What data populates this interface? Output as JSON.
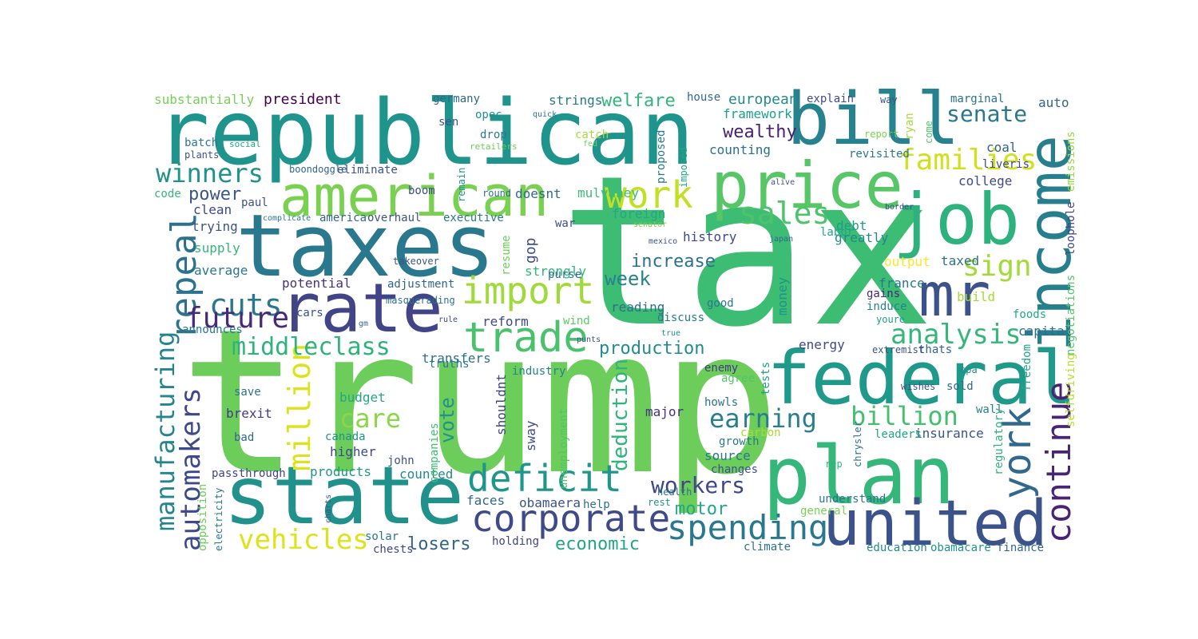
{
  "word_cloud": {
    "words": [
      {
        "text": "tax",
        "color": "#3dbc74"
      },
      {
        "text": "trump",
        "color": "#6ccd5a"
      },
      {
        "text": "republican",
        "color": "#1f948c"
      },
      {
        "text": "taxes",
        "color": "#2a788e"
      },
      {
        "text": "state",
        "color": "#21918c"
      },
      {
        "text": "plan",
        "color": "#35b779"
      },
      {
        "text": "federal",
        "color": "#1f9a8a"
      },
      {
        "text": "bill",
        "color": "#26828e"
      },
      {
        "text": "price",
        "color": "#56c667"
      },
      {
        "text": "job",
        "color": "#2db27d"
      },
      {
        "text": "income",
        "color": "#277f8e"
      },
      {
        "text": "rate",
        "color": "#414487"
      },
      {
        "text": "mr",
        "color": "#3b528b"
      },
      {
        "text": "united",
        "color": "#3b528b"
      },
      {
        "text": "american",
        "color": "#7ad151"
      },
      {
        "text": "trade",
        "color": "#4ac16d"
      },
      {
        "text": "import",
        "color": "#9fda3a"
      },
      {
        "text": "work",
        "color": "#c2df23"
      },
      {
        "text": "corporate",
        "color": "#3e4a89"
      },
      {
        "text": "deficit",
        "color": "#1f968b"
      },
      {
        "text": "spending",
        "color": "#2a788e"
      },
      {
        "text": "york",
        "color": "#31688e"
      },
      {
        "text": "continue",
        "color": "#482475"
      },
      {
        "text": "repeal",
        "color": "#2c728e"
      },
      {
        "text": "cuts",
        "color": "#2a778e"
      },
      {
        "text": "future",
        "color": "#482878"
      },
      {
        "text": "million",
        "color": "#dde318"
      },
      {
        "text": "manufacturing",
        "color": "#25848e"
      },
      {
        "text": "automakers",
        "color": "#3e4989"
      },
      {
        "text": "middleclass",
        "color": "#2eb37c"
      },
      {
        "text": "analysis",
        "color": "#35b779"
      },
      {
        "text": "sales",
        "color": "#4ec36b"
      },
      {
        "text": "families",
        "color": "#d0e11c"
      },
      {
        "text": "sign",
        "color": "#a2da37"
      },
      {
        "text": "senate",
        "color": "#2a788e"
      },
      {
        "text": "winners",
        "color": "#20928c"
      },
      {
        "text": "earning",
        "color": "#277f8e"
      },
      {
        "text": "billion",
        "color": "#44bf70"
      },
      {
        "text": "vehicles",
        "color": "#dde318"
      },
      {
        "text": "workers",
        "color": "#3f4788"
      },
      {
        "text": "care",
        "color": "#8bd646"
      },
      {
        "text": "production",
        "color": "#228c8d"
      },
      {
        "text": "increase",
        "color": "#2c728e"
      },
      {
        "text": "week",
        "color": "#26828e"
      },
      {
        "text": "vote",
        "color": "#20928c"
      },
      {
        "text": "welfare",
        "color": "#32b67a"
      },
      {
        "text": "wealthy",
        "color": "#481f70"
      },
      {
        "text": "deduction",
        "color": "#2fb47c"
      },
      {
        "text": "motor",
        "color": "#22a785"
      },
      {
        "text": "economic",
        "color": "#22a785"
      },
      {
        "text": "losers",
        "color": "#33638d"
      },
      {
        "text": "power",
        "color": "#3a548c"
      },
      {
        "text": "president",
        "color": "#440154"
      },
      {
        "text": "substantially",
        "color": "#75d054"
      },
      {
        "text": "strings",
        "color": "#2a788e"
      },
      {
        "text": "european",
        "color": "#238a8d"
      },
      {
        "text": "framework",
        "color": "#1fa088"
      },
      {
        "text": "counting",
        "color": "#2c718e"
      },
      {
        "text": "explain",
        "color": "#3d4d8a"
      },
      {
        "text": "marginal",
        "color": "#2d708e"
      },
      {
        "text": "auto",
        "color": "#32658e"
      },
      {
        "text": "coal",
        "color": "#33638d"
      },
      {
        "text": "college",
        "color": "#3e4a89"
      },
      {
        "text": "taxed",
        "color": "#2d708e"
      },
      {
        "text": "output",
        "color": "#fde725"
      },
      {
        "text": "france",
        "color": "#2a788e"
      },
      {
        "text": "build",
        "color": "#a5db36"
      },
      {
        "text": "capital",
        "color": "#2e6d8e"
      },
      {
        "text": "energy",
        "color": "#3e4a89"
      },
      {
        "text": "money",
        "color": "#21918c"
      },
      {
        "text": "reading",
        "color": "#2e6f8e"
      },
      {
        "text": "history",
        "color": "#3f4889"
      },
      {
        "text": "foreign",
        "color": "#22a884"
      },
      {
        "text": "greatly",
        "color": "#25858e"
      },
      {
        "text": "debt",
        "color": "#1e9c89"
      },
      {
        "text": "transfers",
        "color": "#2c718e"
      },
      {
        "text": "reform",
        "color": "#3e4989"
      },
      {
        "text": "strongly",
        "color": "#31b57b"
      },
      {
        "text": "gop",
        "color": "#3e4a89"
      },
      {
        "text": "resume",
        "color": "#6ece58"
      },
      {
        "text": "doesnt",
        "color": "#30698e"
      },
      {
        "text": "mulvaney",
        "color": "#3dbc74"
      },
      {
        "text": "potential",
        "color": "#46327e"
      },
      {
        "text": "adjustment",
        "color": "#32658e"
      },
      {
        "text": "average",
        "color": "#2a788e"
      },
      {
        "text": "supply",
        "color": "#35b779"
      },
      {
        "text": "trying",
        "color": "#3b528b"
      },
      {
        "text": "clean",
        "color": "#3f4889"
      },
      {
        "text": "budget",
        "color": "#22a785"
      },
      {
        "text": "brexit",
        "color": "#443983"
      },
      {
        "text": "save",
        "color": "#2d708e"
      },
      {
        "text": "bad",
        "color": "#31688e"
      },
      {
        "text": "canada",
        "color": "#21918c"
      },
      {
        "text": "higher",
        "color": "#3e4989"
      },
      {
        "text": "products",
        "color": "#1f968b"
      },
      {
        "text": "counted",
        "color": "#23898e"
      },
      {
        "text": "faces",
        "color": "#31688e"
      },
      {
        "text": "obamaera",
        "color": "#3a538b"
      },
      {
        "text": "help",
        "color": "#2e6f8e"
      },
      {
        "text": "shouldnt",
        "color": "#414487"
      },
      {
        "text": "major",
        "color": "#46317e"
      },
      {
        "text": "sway",
        "color": "#3e4a89"
      },
      {
        "text": "source",
        "color": "#2a778e"
      },
      {
        "text": "growth",
        "color": "#2a788e"
      },
      {
        "text": "carbon",
        "color": "#a5db36"
      },
      {
        "text": "changes",
        "color": "#3b528b"
      },
      {
        "text": "howls",
        "color": "#2c718e"
      },
      {
        "text": "agree",
        "color": "#52c569"
      },
      {
        "text": "enemy",
        "color": "#443983"
      },
      {
        "text": "tests",
        "color": "#1fa088"
      },
      {
        "text": "sold",
        "color": "#31688e"
      },
      {
        "text": "wishes",
        "color": "#3b528b"
      },
      {
        "text": "wall",
        "color": "#26828e"
      },
      {
        "text": "insurance",
        "color": "#3b528b"
      },
      {
        "text": "leaders",
        "color": "#21a685"
      },
      {
        "text": "regulatory",
        "color": "#2eb37c"
      },
      {
        "text": "freedom",
        "color": "#22a785"
      },
      {
        "text": "selfdriving",
        "color": "#b8de29"
      },
      {
        "text": "negotiations",
        "color": "#52c569"
      },
      {
        "text": "emissions",
        "color": "#95d840"
      },
      {
        "text": "loophole",
        "color": "#404588"
      },
      {
        "text": "foods",
        "color": "#22a785"
      },
      {
        "text": "gains",
        "color": "#482878"
      },
      {
        "text": "induce",
        "color": "#25838e"
      },
      {
        "text": "youre",
        "color": "#1f9a8a"
      },
      {
        "text": "thats",
        "color": "#33638d"
      },
      {
        "text": "extremist",
        "color": "#3a548c"
      },
      {
        "text": "epa",
        "color": "#21918c"
      },
      {
        "text": "understand",
        "color": "#2a768e"
      },
      {
        "text": "general",
        "color": "#7ad151"
      },
      {
        "text": "climate",
        "color": "#2c718e"
      },
      {
        "text": "education",
        "color": "#23898e"
      },
      {
        "text": "obamacare",
        "color": "#1f948c"
      },
      {
        "text": "finance",
        "color": "#31688e"
      },
      {
        "text": "chrysler",
        "color": "#2e6f8e"
      },
      {
        "text": "rep",
        "color": "#31b57b"
      },
      {
        "text": "health",
        "color": "#2c718e"
      },
      {
        "text": "rest",
        "color": "#21918c"
      },
      {
        "text": "john",
        "color": "#3b528b"
      },
      {
        "text": "passthrough",
        "color": "#404387"
      },
      {
        "text": "opposition",
        "color": "#6ccd5a"
      },
      {
        "text": "electricity",
        "color": "#2a788e"
      },
      {
        "text": "charts",
        "color": "#3b528b"
      },
      {
        "text": "solar",
        "color": "#2a788e"
      },
      {
        "text": "chests",
        "color": "#3f4889"
      },
      {
        "text": "holding",
        "color": "#414487"
      },
      {
        "text": "unemployment",
        "color": "#52c569"
      },
      {
        "text": "companies",
        "color": "#3dbc74"
      },
      {
        "text": "truths",
        "color": "#2a788e"
      },
      {
        "text": "industry",
        "color": "#26828e"
      },
      {
        "text": "punts",
        "color": "#3b528b"
      },
      {
        "text": "rule",
        "color": "#3f4889"
      },
      {
        "text": "cars",
        "color": "#3b528b"
      },
      {
        "text": "gm",
        "color": "#31688e"
      },
      {
        "text": "purse",
        "color": "#2c718e"
      },
      {
        "text": "wind",
        "color": "#5ec962"
      },
      {
        "text": "announces",
        "color": "#2a788e"
      },
      {
        "text": "takeover",
        "color": "#3a548c"
      },
      {
        "text": "masquerading",
        "color": "#2c718e"
      },
      {
        "text": "war",
        "color": "#3e4a89"
      },
      {
        "text": "executive",
        "color": "#2a788e"
      },
      {
        "text": "overhaul",
        "color": "#3b528b"
      },
      {
        "text": "america",
        "color": "#33638d"
      },
      {
        "text": "complicate",
        "color": "#2a788e"
      },
      {
        "text": "paul",
        "color": "#3b528b"
      },
      {
        "text": "code",
        "color": "#35b779"
      },
      {
        "text": "boom",
        "color": "#3e4a89"
      },
      {
        "text": "round",
        "color": "#2e6f8e"
      },
      {
        "text": "remain",
        "color": "#21918c"
      },
      {
        "text": "eliminate",
        "color": "#3b528b"
      },
      {
        "text": "boondoggle",
        "color": "#32658e"
      },
      {
        "text": "batch",
        "color": "#2a788e"
      },
      {
        "text": "plants",
        "color": "#3b528b"
      },
      {
        "text": "social",
        "color": "#22a785"
      },
      {
        "text": "retailers",
        "color": "#6ccd5a"
      },
      {
        "text": "sen",
        "color": "#3b528b"
      },
      {
        "text": "germany",
        "color": "#31688e"
      },
      {
        "text": "opec",
        "color": "#21918c"
      },
      {
        "text": "quick",
        "color": "#2c718e"
      },
      {
        "text": "drop",
        "color": "#2a788e"
      },
      {
        "text": "catch",
        "color": "#a5db36"
      },
      {
        "text": "fed",
        "color": "#6ccd5a"
      },
      {
        "text": "proposed",
        "color": "#2a788e"
      },
      {
        "text": "imposed",
        "color": "#22a785"
      },
      {
        "text": "house",
        "color": "#31688e"
      },
      {
        "text": "report",
        "color": "#7ad151"
      },
      {
        "text": "ryan",
        "color": "#a5db36"
      },
      {
        "text": "come",
        "color": "#52c569"
      },
      {
        "text": "way",
        "color": "#3b528b"
      },
      {
        "text": "liveris",
        "color": "#3e4989"
      },
      {
        "text": "revisited",
        "color": "#2a788e"
      },
      {
        "text": "alive",
        "color": "#3b528b"
      },
      {
        "text": "border",
        "color": "#3e4a89"
      },
      {
        "text": "senator",
        "color": "#7ad151"
      },
      {
        "text": "mexico",
        "color": "#3b528b"
      },
      {
        "text": "japan",
        "color": "#31688e"
      },
      {
        "text": "labor",
        "color": "#22a785"
      },
      {
        "text": "good",
        "color": "#2a788e"
      },
      {
        "text": "discuss",
        "color": "#2a788e"
      },
      {
        "text": "true",
        "color": "#21918c"
      }
    ]
  }
}
